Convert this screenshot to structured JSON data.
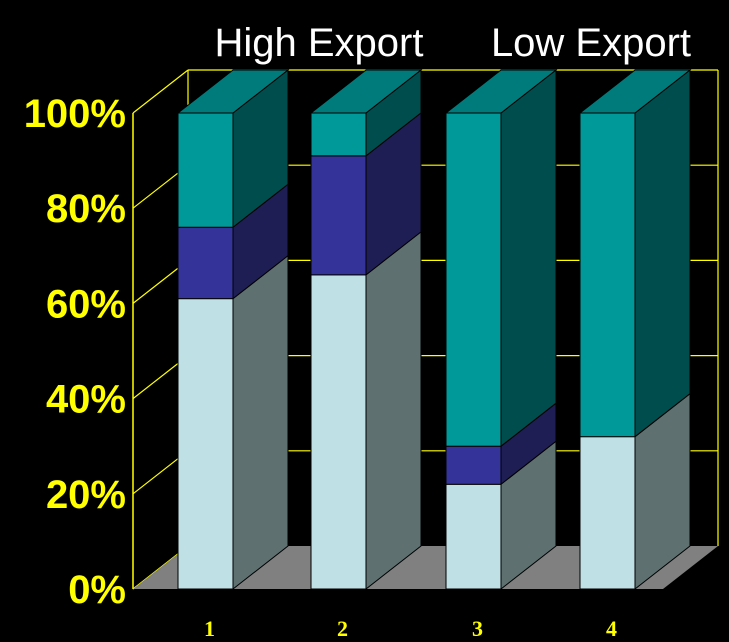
{
  "chart_data": {
    "type": "bar",
    "stacked": true,
    "three_d": true,
    "categories": [
      "1",
      "2",
      "3",
      "4"
    ],
    "series": [
      {
        "values": [
          61,
          66,
          22,
          32
        ],
        "color": "#bfe0e4",
        "side_color": "#5e7070",
        "top_color": "#bfe0e4"
      },
      {
        "values": [
          15,
          25,
          8,
          0
        ],
        "color": "#333399",
        "side_color": "#1e1e55",
        "top_color": "#333399"
      },
      {
        "values": [
          24,
          9,
          70,
          68
        ],
        "color": "#009999",
        "side_color": "#004d4d",
        "top_color": "#007b7b"
      }
    ],
    "group_labels": [
      "High Export",
      "Low Export"
    ],
    "ylim": [
      0,
      100
    ],
    "y_ticks": [
      "0%",
      "20%",
      "40%",
      "60%",
      "80%",
      "100%"
    ],
    "grid": true,
    "colors": {
      "background": "#000000",
      "axis": "#ffff00",
      "tick_label": "#ffff00",
      "floor": "#808080",
      "group_label": "#ffffff"
    }
  }
}
